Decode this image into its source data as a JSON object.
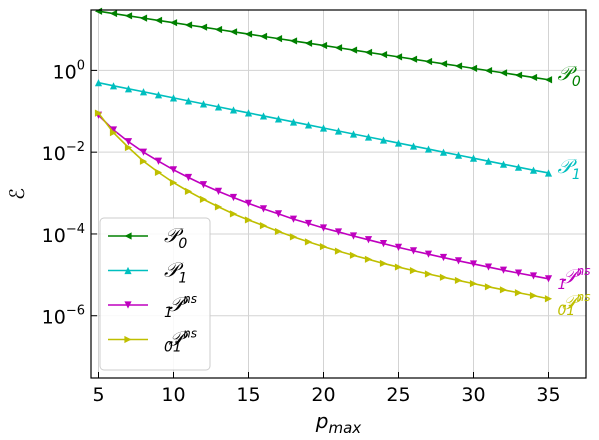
{
  "chart_data": {
    "type": "line",
    "title": "",
    "xlabel": "p_max",
    "ylabel": "ℰ",
    "yscale": "log",
    "xlim": [
      4.5,
      37.5
    ],
    "ylim": [
      3e-08,
      30
    ],
    "grid": true,
    "legend_position": "lower-left",
    "x_ticks": [
      5,
      10,
      15,
      20,
      25,
      30,
      35
    ],
    "x_tick_labels": [
      "5",
      "10",
      "15",
      "20",
      "25",
      "30",
      "35"
    ],
    "y_ticks": [
      1e-06,
      0.0001,
      0.01,
      1
    ],
    "y_tick_labels": [
      {
        "base": "10",
        "exp": "−6"
      },
      {
        "base": "10",
        "exp": "−4"
      },
      {
        "base": "10",
        "exp": "−2"
      },
      {
        "base": "10",
        "exp": "0"
      }
    ],
    "x": [
      5,
      6,
      7,
      8,
      9,
      10,
      11,
      12,
      13,
      14,
      15,
      16,
      17,
      18,
      19,
      20,
      21,
      22,
      23,
      24,
      25,
      26,
      27,
      28,
      29,
      30,
      31,
      32,
      33,
      34,
      35
    ],
    "series": [
      {
        "name": {
          "main": "𝒫",
          "sub": "0",
          "sup": ""
        },
        "color": "#008000",
        "marker": "triangle-left",
        "values": [
          28.0,
          24.6,
          21.6,
          19.0,
          16.7,
          14.7,
          12.9,
          11.4,
          10.0,
          8.79,
          7.73,
          6.8,
          5.98,
          5.26,
          4.62,
          4.07,
          3.58,
          3.14,
          2.76,
          2.43,
          2.14,
          1.88,
          1.65,
          1.45,
          1.28,
          1.12,
          0.988,
          0.869,
          0.764,
          0.672,
          0.59
        ]
      },
      {
        "name": {
          "main": "𝒫",
          "sub": "1",
          "sup": ""
        },
        "color": "#00bfbf",
        "marker": "triangle-up",
        "values": [
          0.5,
          0.42,
          0.355,
          0.3,
          0.253,
          0.213,
          0.18,
          0.152,
          0.128,
          0.108,
          0.0913,
          0.077,
          0.065,
          0.0548,
          0.0463,
          0.039,
          0.033,
          0.0278,
          0.0235,
          0.0198,
          0.0167,
          0.0141,
          0.0119,
          0.01,
          0.00846,
          0.00714,
          0.00603,
          0.00509,
          0.0043,
          0.00363,
          0.0031
        ]
      },
      {
        "name": {
          "main": "𝒫",
          "sub": "1",
          "sup": "n_s"
        },
        "color": "#bf00bf",
        "marker": "triangle-down",
        "values": [
          0.08,
          0.035,
          0.018,
          0.01,
          0.006,
          0.0037,
          0.0024,
          0.0016,
          0.0011,
          0.00078,
          0.00056,
          0.00041,
          0.00031,
          0.00023,
          0.00018,
          0.00014,
          0.000112,
          8.9e-05,
          7.2e-05,
          5.8e-05,
          4.7e-05,
          3.85e-05,
          3.2e-05,
          2.65e-05,
          2.2e-05,
          1.85e-05,
          1.55e-05,
          1.3e-05,
          1.1e-05,
          9.4e-06,
          8e-06
        ]
      },
      {
        "name": {
          "main": "𝒫",
          "sub": "01",
          "sup": "n_s"
        },
        "color": "#bfbf00",
        "marker": "triangle-right",
        "values": [
          0.09,
          0.03,
          0.013,
          0.006,
          0.0032,
          0.0018,
          0.0011,
          0.0007,
          0.00046,
          0.00031,
          0.00022,
          0.00016,
          0.000115,
          8.5e-05,
          6.4e-05,
          4.9e-05,
          3.8e-05,
          3e-05,
          2.4e-05,
          1.9e-05,
          1.55e-05,
          1.27e-05,
          1.05e-05,
          8.7e-06,
          7.3e-06,
          6.1e-06,
          5.1e-06,
          4.3e-06,
          3.65e-06,
          3.1e-06,
          2.6e-06
        ]
      }
    ]
  }
}
